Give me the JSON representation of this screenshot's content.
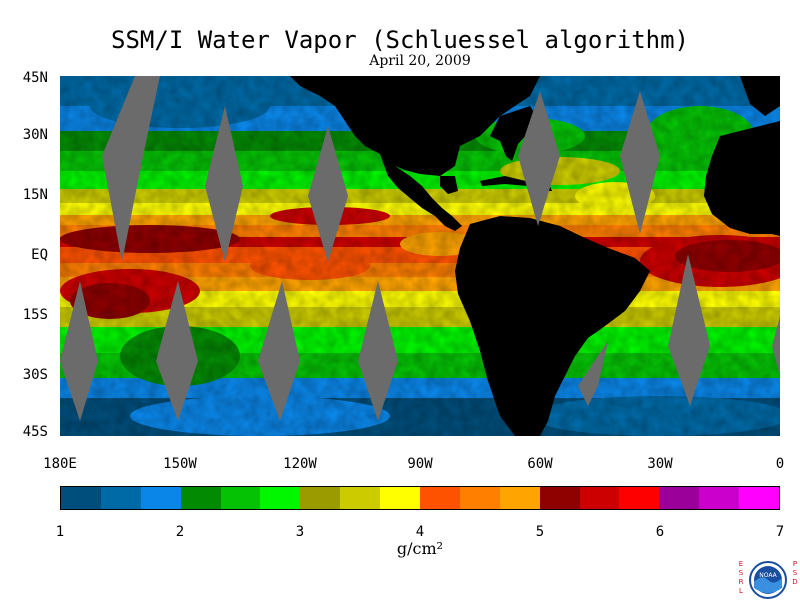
{
  "title": "SSM/I Water Vapor (Schluessel algorithm)",
  "date": "April 20, 2009",
  "lat_labels": [
    "45N",
    "30N",
    "15N",
    "EQ",
    "15S",
    "30S",
    "45S"
  ],
  "lon_labels": [
    "180E",
    "150W",
    "120W",
    "90W",
    "60W",
    "30W",
    "0"
  ],
  "colorbar": {
    "colors": [
      "#004e7b",
      "#006aa6",
      "#0a86e8",
      "#038a03",
      "#05c205",
      "#00f700",
      "#9b9b00",
      "#cbcb00",
      "#ffff00",
      "#ff5200",
      "#ff7f00",
      "#ffa400",
      "#8f0000",
      "#cc0000",
      "#ff0000",
      "#9b009b",
      "#cc00cc",
      "#ff00ff"
    ],
    "ticks": [
      "1",
      "2",
      "3",
      "4",
      "5",
      "6",
      "7"
    ],
    "unit": "g/cm²"
  },
  "colors": {
    "land": "#000000",
    "missing_swath": "#6b6b6b"
  },
  "logo": {
    "left_letters": [
      "E",
      "S",
      "R",
      "L"
    ],
    "right_letters": [
      "P",
      "S",
      "D"
    ],
    "name": "NOAA"
  }
}
